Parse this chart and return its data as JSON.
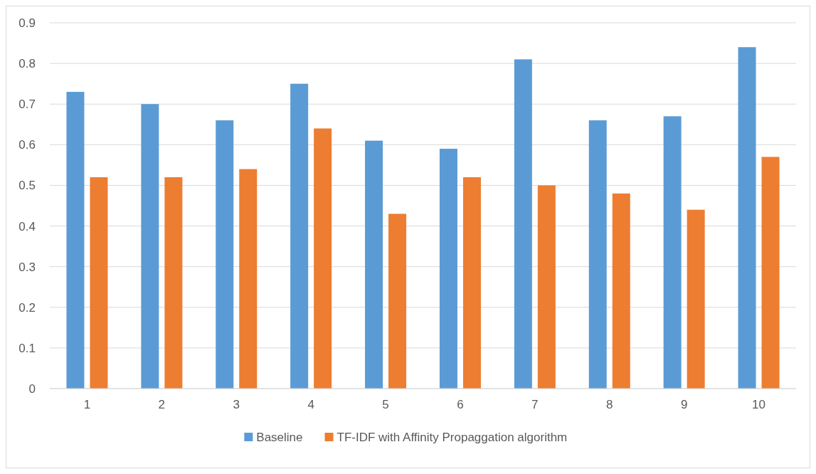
{
  "chart_data": {
    "type": "bar",
    "categories": [
      "1",
      "2",
      "3",
      "4",
      "5",
      "6",
      "7",
      "8",
      "9",
      "10"
    ],
    "series": [
      {
        "name": "Baseline",
        "color": "#5b9bd5",
        "values": [
          0.73,
          0.7,
          0.66,
          0.75,
          0.61,
          0.59,
          0.81,
          0.66,
          0.67,
          0.84
        ]
      },
      {
        "name": "TF-IDF with Affinity Propaggation algorithm",
        "color": "#ed7d31",
        "values": [
          0.52,
          0.52,
          0.54,
          0.64,
          0.43,
          0.52,
          0.5,
          0.48,
          0.44,
          0.57
        ]
      }
    ],
    "ylim": [
      0,
      0.9
    ],
    "yticks": [
      0,
      0.1,
      0.2,
      0.3,
      0.4,
      0.5,
      0.6,
      0.7,
      0.8,
      0.9
    ],
    "grid": "y",
    "legend": "bottom"
  }
}
